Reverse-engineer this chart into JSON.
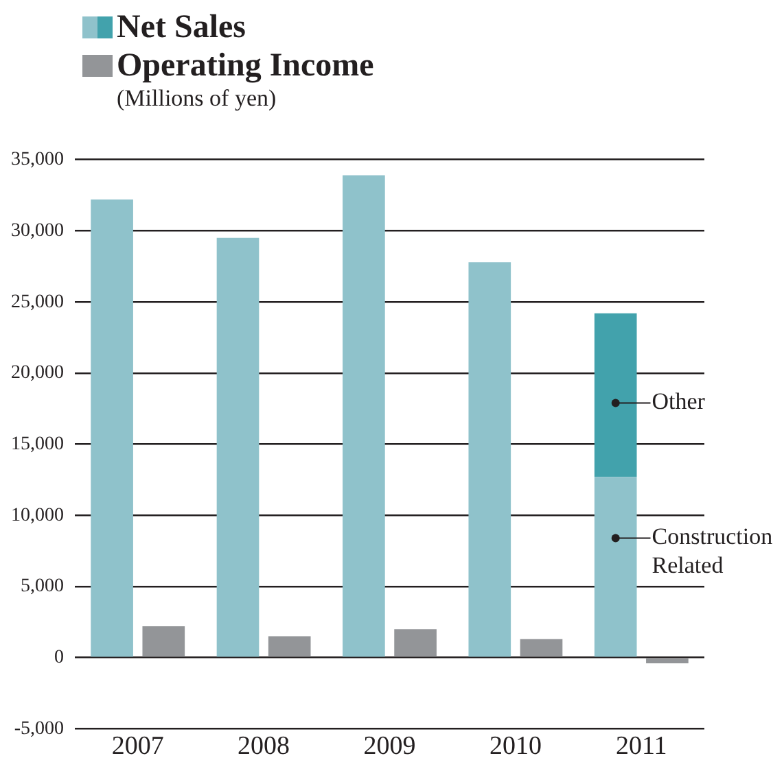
{
  "chart_data": {
    "type": "bar",
    "subtitle": "(Millions of yen)",
    "categories": [
      "2007",
      "2008",
      "2009",
      "2010",
      "2011"
    ],
    "series": [
      {
        "name": "Net Sales",
        "color": "#8fc2cb",
        "values": [
          32200,
          29500,
          33900,
          27800,
          12700
        ]
      },
      {
        "color": "#42a2ac",
        "values": [
          null,
          null,
          null,
          null,
          11500
        ],
        "base": [
          null,
          null,
          null,
          null,
          12700
        ]
      },
      {
        "name": "Operating Income",
        "color": "#939598",
        "values": [
          2200,
          1500,
          2000,
          1300,
          -400
        ]
      }
    ],
    "ylim": [
      -5000,
      35000
    ],
    "yticks": [
      {
        "value": -5000,
        "label": "-5,000"
      },
      0,
      {
        "value": 5000,
        "label": "5,000"
      },
      {
        "value": 10000,
        "label": "10,000"
      },
      {
        "value": 15000,
        "label": "15,000"
      },
      {
        "value": 20000,
        "label": "20,000"
      },
      {
        "value": 25000,
        "label": "25,000"
      },
      {
        "value": 30000,
        "label": "30,000"
      },
      {
        "value": 35000,
        "label": "35,000"
      }
    ],
    "grid": "y",
    "legend": "top left",
    "annotations": [
      {
        "text": "Other",
        "x": "2011",
        "y": 17900
      },
      {
        "text": "Construction Related",
        "x": "2011",
        "y": 8400
      }
    ]
  }
}
